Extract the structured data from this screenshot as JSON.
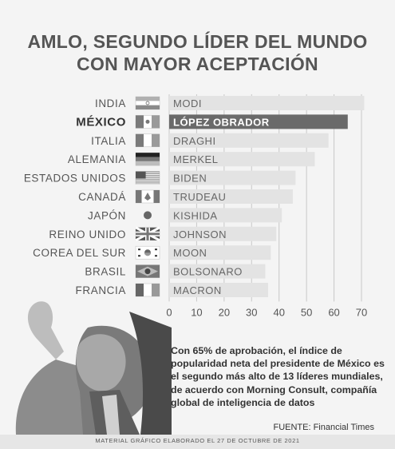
{
  "title": {
    "line1": "AMLO, SEGUNDO LÍDER DEL MUNDO",
    "line2": "CON MAYOR ACEPTACIÓN"
  },
  "chart_data": {
    "type": "bar",
    "orientation": "horizontal",
    "title": "AMLO, SEGUNDO LÍDER DEL MUNDO CON MAYOR ACEPTACIÓN",
    "categories": [
      "INDIA",
      "MÉXICO",
      "ITALIA",
      "ALEMANIA",
      "ESTADOS UNIDOS",
      "CANADÁ",
      "JAPÓN",
      "REINO UNIDO",
      "COREA DEL SUR",
      "BRASIL",
      "FRANCIA"
    ],
    "leaders": [
      "MODI",
      "LÓPEZ OBRADOR",
      "DRAGHI",
      "MERKEL",
      "BIDEN",
      "TRUDEAU",
      "KISHIDA",
      "JOHNSON",
      "MOON",
      "BOLSONARO",
      "MACRON"
    ],
    "values": [
      71,
      65,
      58,
      53,
      46,
      45,
      41,
      39,
      37,
      35,
      36
    ],
    "highlight_index": 1,
    "xlim": [
      0,
      70
    ],
    "xticks": [
      "0",
      "10",
      "20",
      "30",
      "40",
      "50",
      "60",
      "70"
    ],
    "xticks_values": [
      0,
      10,
      20,
      30,
      40,
      50,
      60,
      70
    ],
    "grid": true,
    "colors": {
      "bar": "#e3e3e3",
      "highlight": "#6a6a6a",
      "grid": "#c8c8c8",
      "label": "#444444"
    }
  },
  "description": "Con 65% de aprobación, el índice de popularidad neta del presidente de México es el segundo más alto de 13 líderes mundiales, de acuerdo con Morning Consult, compañía global de inteligencia de datos",
  "source": "FUENTE: Financial Times",
  "footer": "MATERIAL GRÁFICO ELABORADO EL 27 DE OCTUBRE DE 2021",
  "flag_icons": [
    "india-flag-icon",
    "mexico-flag-icon",
    "italy-flag-icon",
    "germany-flag-icon",
    "usa-flag-icon",
    "canada-flag-icon",
    "japan-flag-icon",
    "uk-flag-icon",
    "south-korea-flag-icon",
    "brazil-flag-icon",
    "france-flag-icon"
  ]
}
